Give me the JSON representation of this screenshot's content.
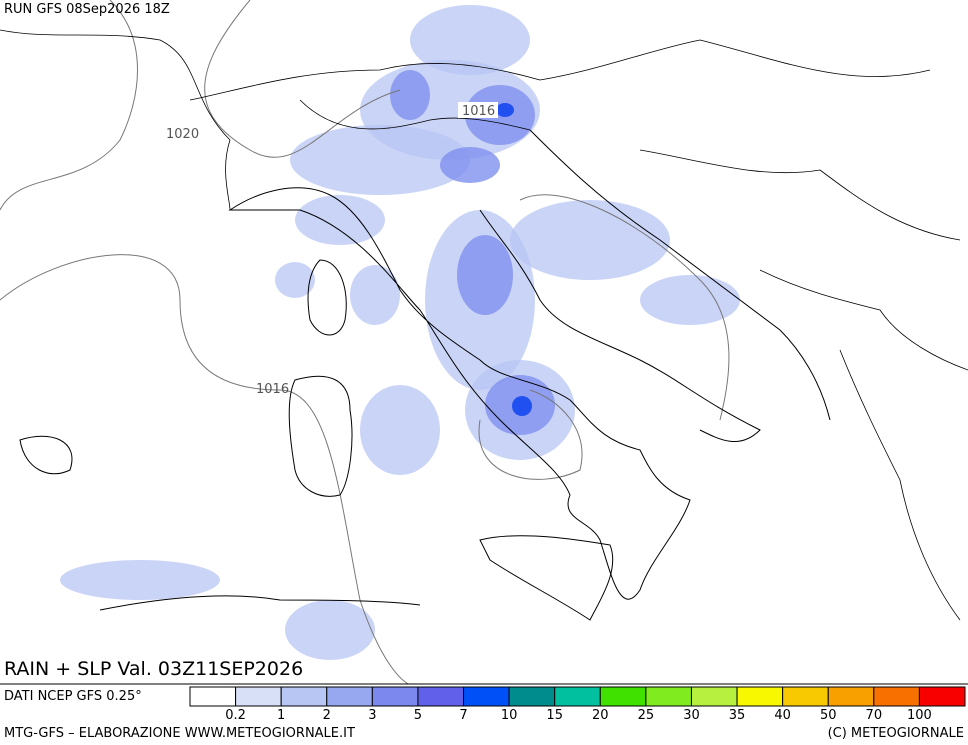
{
  "header": {
    "run": "RUN GFS 08Sep2026 18Z"
  },
  "isobars": [
    {
      "label": "1020"
    },
    {
      "label": "1016"
    },
    {
      "label": "1016"
    }
  ],
  "footer": {
    "title": "RAIN + SLP Val. 03Z11SEP2026",
    "source": "DATI NCEP GFS 0.25°",
    "credit": "MTG-GFS – ELABORAZIONE WWW.METEOGIORNALE.IT",
    "copyright": "(C) METEOGIORNALE"
  },
  "legend": {
    "labels": [
      0.2,
      1,
      2,
      3,
      5,
      7,
      10,
      15,
      20,
      25,
      30,
      35,
      40,
      50,
      70,
      100
    ],
    "colors": [
      "#ffffff",
      "#d8e0f8",
      "#b8c6f4",
      "#98a8f0",
      "#7c88ee",
      "#6060ea",
      "#0050f8",
      "#008c8c",
      "#00c0a0",
      "#40e000",
      "#80ec20",
      "#b8f040",
      "#f8f800",
      "#f8c800",
      "#f8a000",
      "#f87000",
      "#f80000"
    ]
  }
}
